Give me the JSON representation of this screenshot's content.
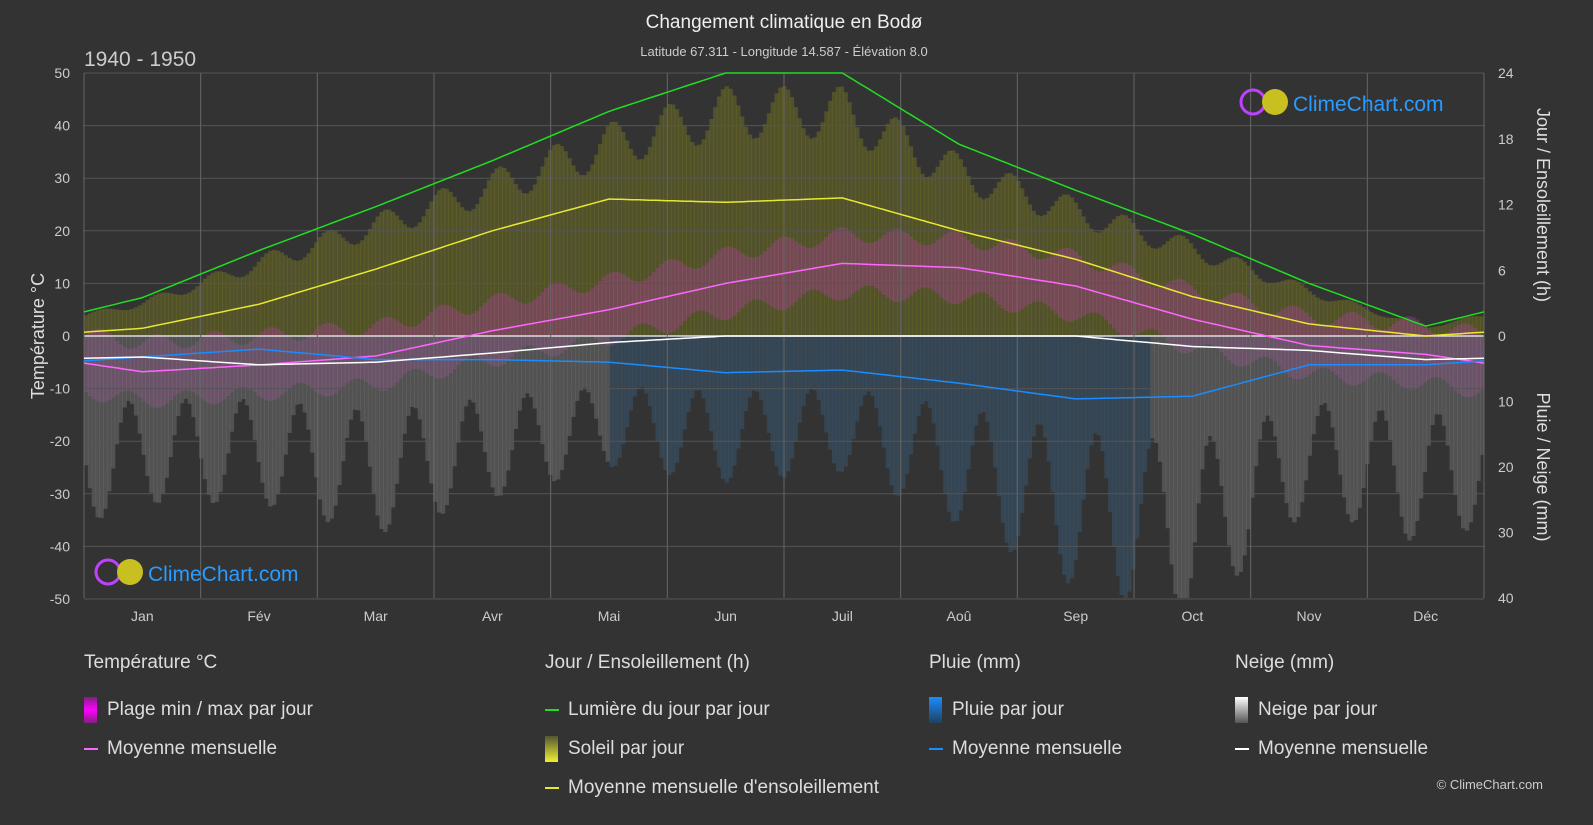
{
  "header": {
    "title": "Changement climatique en Bodø",
    "subtitle": "Latitude 67.311 - Longitude 14.587 - Élévation 8.0",
    "period": "1940 - 1950",
    "logo_text": "ClimeChart.com",
    "copyright": "© ClimeChart.com"
  },
  "chart_data": {
    "type": "line",
    "title": "Changement climatique en Bodø",
    "categories": [
      "Jan",
      "Fév",
      "Mar",
      "Avr",
      "Mai",
      "Jun",
      "Juil",
      "Aoû",
      "Sep",
      "Oct",
      "Nov",
      "Déc"
    ],
    "y_left": {
      "label": "Température °C",
      "range": [
        -50,
        50
      ],
      "ticks": [
        50,
        40,
        30,
        20,
        10,
        0,
        -10,
        -20,
        -30,
        -40,
        -50
      ]
    },
    "y_right_top": {
      "label": "Jour / Ensoleillement (h)",
      "range": [
        0,
        24
      ],
      "ticks": [
        24,
        18,
        12,
        6,
        0
      ]
    },
    "y_right_bottom": {
      "label": "Pluie / Neige (mm)",
      "range": [
        0,
        40
      ],
      "ticks": [
        0,
        10,
        20,
        30,
        40
      ]
    },
    "grid": true,
    "series": [
      {
        "name": "Température moyenne mensuelle",
        "axis": "temp",
        "color": "#ff66ff",
        "values": [
          -6.8,
          -5.5,
          -3.8,
          1.0,
          5.0,
          10.0,
          13.8,
          13.0,
          9.5,
          3.2,
          -1.8,
          -3.5
        ]
      },
      {
        "name": "Lumière du jour par jour",
        "axis": "hours",
        "color": "#22dd22",
        "values": [
          3.5,
          7.8,
          11.8,
          16.0,
          20.5,
          24.0,
          24.0,
          17.5,
          13.3,
          9.3,
          4.8,
          0.9
        ]
      },
      {
        "name": "Moyenne mensuelle d'ensoleillement",
        "axis": "hours",
        "color": "#e8e830",
        "values": [
          0.7,
          2.9,
          6.1,
          9.6,
          12.5,
          12.2,
          12.6,
          9.6,
          7.0,
          3.6,
          1.1,
          0.0
        ]
      },
      {
        "name": "Pluie moyenne mensuelle",
        "axis": "mm",
        "color": "#1a8cff",
        "values": [
          3.2,
          2.0,
          3.6,
          3.6,
          4.0,
          5.6,
          5.2,
          7.2,
          9.6,
          9.2,
          4.4,
          4.4
        ]
      },
      {
        "name": "Neige moyenne mensuelle",
        "axis": "mm",
        "color": "#ffffff",
        "values": [
          3.2,
          4.4,
          4.0,
          2.6,
          1.0,
          0,
          0,
          0,
          0,
          1.6,
          2.2,
          3.6
        ]
      }
    ]
  },
  "legend": {
    "temp": {
      "title": "Température °C",
      "range": "Plage min / max par jour",
      "mean": "Moyenne mensuelle"
    },
    "sun": {
      "title": "Jour / Ensoleillement (h)",
      "daylight": "Lumière du jour par jour",
      "sun": "Soleil par jour",
      "mean": "Moyenne mensuelle d'ensoleillement"
    },
    "rain": {
      "title": "Pluie (mm)",
      "daily": "Pluie par jour",
      "mean": "Moyenne mensuelle"
    },
    "snow": {
      "title": "Neige (mm)",
      "daily": "Neige par jour",
      "mean": "Moyenne mensuelle"
    }
  }
}
